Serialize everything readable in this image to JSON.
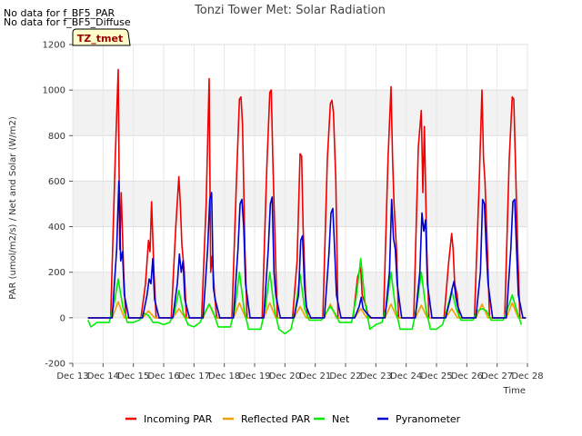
{
  "no_data_messages": [
    "No data for f_BF5_PAR",
    "No data for f_BF5_Diffuse"
  ],
  "tz_label": "TZ_tmet",
  "chart_data": {
    "type": "line",
    "title": "Tonzi Tower Met: Solar Radiation",
    "xlabel": "Time",
    "ylabel": "PAR (umol/m2/s) / Net and Solar (W/m2)",
    "xlim": [
      13,
      28
    ],
    "ylim": [
      -200,
      1200
    ],
    "x_tick_values": [
      13,
      14,
      15,
      16,
      17,
      18,
      19,
      20,
      21,
      22,
      23,
      24,
      25,
      26,
      27,
      28
    ],
    "x_tick_labels": [
      "Dec 13",
      "Dec 14",
      "Dec 15",
      "Dec 16",
      "Dec 17",
      "Dec 18",
      "Dec 19",
      "Dec 20",
      "Dec 21",
      "Dec 22",
      "Dec 23",
      "Dec 24",
      "Dec 25",
      "Dec 26",
      "Dec 27",
      "Dec 28"
    ],
    "y_ticks": [
      -200,
      0,
      200,
      400,
      600,
      800,
      1000,
      1200
    ],
    "grid": true,
    "legend_position": "bottom",
    "series": [
      {
        "name": "Incoming PAR",
        "color": "#ee0000",
        "x": [
          13.5,
          14.0,
          14.25,
          14.4,
          14.5,
          14.55,
          14.6,
          14.68,
          14.75,
          14.8,
          15.0,
          15.25,
          15.4,
          15.5,
          15.55,
          15.6,
          15.68,
          15.75,
          15.8,
          16.0,
          16.25,
          16.4,
          16.5,
          16.55,
          16.6,
          16.68,
          16.75,
          16.8,
          17.0,
          17.25,
          17.4,
          17.5,
          17.55,
          17.6,
          17.68,
          17.75,
          17.8,
          18.0,
          18.25,
          18.4,
          18.5,
          18.55,
          18.6,
          18.68,
          18.75,
          18.8,
          19.0,
          19.25,
          19.4,
          19.5,
          19.55,
          19.6,
          19.68,
          19.75,
          19.8,
          20.0,
          20.25,
          20.4,
          20.5,
          20.55,
          20.6,
          20.68,
          20.75,
          20.8,
          21.0,
          21.25,
          21.4,
          21.5,
          21.55,
          21.6,
          21.68,
          21.75,
          21.8,
          22.0,
          22.25,
          22.4,
          22.5,
          22.55,
          22.6,
          22.68,
          22.75,
          22.8,
          23.0,
          23.25,
          23.4,
          23.5,
          23.55,
          23.6,
          23.68,
          23.75,
          23.8,
          24.0,
          24.25,
          24.4,
          24.5,
          24.55,
          24.6,
          24.68,
          24.75,
          24.8,
          25.0,
          25.25,
          25.4,
          25.5,
          25.55,
          25.6,
          25.68,
          25.75,
          25.8,
          26.0,
          26.25,
          26.4,
          26.5,
          26.55,
          26.6,
          26.68,
          26.75,
          26.8,
          27.0,
          27.25,
          27.4,
          27.5,
          27.55,
          27.6,
          27.68,
          27.75,
          27.8,
          27.95
        ],
        "y": [
          0,
          0,
          0,
          700,
          1090,
          300,
          550,
          200,
          0,
          0,
          0,
          0,
          150,
          340,
          290,
          510,
          200,
          0,
          0,
          0,
          0,
          400,
          620,
          500,
          320,
          200,
          0,
          0,
          0,
          0,
          500,
          1050,
          200,
          270,
          100,
          0,
          0,
          0,
          0,
          600,
          960,
          970,
          850,
          300,
          0,
          0,
          0,
          0,
          650,
          990,
          1000,
          700,
          300,
          0,
          0,
          0,
          0,
          250,
          720,
          710,
          400,
          100,
          0,
          0,
          0,
          0,
          700,
          940,
          955,
          900,
          600,
          0,
          0,
          0,
          0,
          180,
          220,
          100,
          80,
          50,
          0,
          0,
          0,
          0,
          700,
          1015,
          700,
          500,
          300,
          0,
          0,
          0,
          0,
          750,
          910,
          550,
          840,
          300,
          0,
          0,
          0,
          0,
          240,
          370,
          300,
          150,
          100,
          0,
          0,
          0,
          0,
          560,
          1000,
          700,
          600,
          300,
          0,
          0,
          0,
          0,
          700,
          970,
          960,
          700,
          300,
          0,
          0,
          0
        ]
      },
      {
        "name": "Reflected PAR",
        "color": "#f0a000",
        "x": [
          13.5,
          14.0,
          14.3,
          14.5,
          14.7,
          15.0,
          15.3,
          15.5,
          15.7,
          16.0,
          16.3,
          16.5,
          16.7,
          17.0,
          17.3,
          17.5,
          17.7,
          18.0,
          18.3,
          18.5,
          18.7,
          19.0,
          19.3,
          19.5,
          19.7,
          20.0,
          20.3,
          20.5,
          20.7,
          21.0,
          21.3,
          21.5,
          21.7,
          22.0,
          22.3,
          22.5,
          22.7,
          23.0,
          23.3,
          23.5,
          23.7,
          24.0,
          24.3,
          24.5,
          24.7,
          25.0,
          25.3,
          25.5,
          25.7,
          26.0,
          26.3,
          26.5,
          26.7,
          27.0,
          27.3,
          27.5,
          27.7,
          27.95
        ],
        "y": [
          0,
          0,
          0,
          70,
          0,
          0,
          0,
          30,
          0,
          0,
          0,
          40,
          0,
          0,
          0,
          60,
          0,
          0,
          0,
          65,
          0,
          0,
          0,
          65,
          0,
          0,
          0,
          50,
          0,
          0,
          0,
          60,
          0,
          0,
          0,
          40,
          0,
          0,
          0,
          60,
          0,
          0,
          0,
          55,
          0,
          0,
          0,
          40,
          0,
          0,
          0,
          60,
          0,
          0,
          0,
          65,
          0,
          0
        ]
      },
      {
        "name": "Net",
        "color": "#00ee00",
        "x": [
          13.5,
          13.6,
          13.8,
          14.0,
          14.2,
          14.35,
          14.5,
          14.65,
          14.8,
          15.0,
          15.2,
          15.35,
          15.5,
          15.65,
          15.8,
          16.0,
          16.2,
          16.35,
          16.5,
          16.65,
          16.8,
          17.0,
          17.2,
          17.35,
          17.5,
          17.65,
          17.8,
          18.0,
          18.2,
          18.35,
          18.5,
          18.65,
          18.8,
          19.0,
          19.2,
          19.35,
          19.5,
          19.65,
          19.8,
          20.0,
          20.2,
          20.35,
          20.5,
          20.65,
          20.8,
          21.0,
          21.2,
          21.35,
          21.5,
          21.65,
          21.8,
          22.0,
          22.2,
          22.35,
          22.5,
          22.65,
          22.8,
          23.0,
          23.2,
          23.35,
          23.5,
          23.65,
          23.8,
          24.0,
          24.2,
          24.35,
          24.5,
          24.65,
          24.8,
          25.0,
          25.2,
          25.35,
          25.5,
          25.65,
          25.8,
          26.0,
          26.2,
          26.35,
          26.5,
          26.65,
          26.8,
          27.0,
          27.2,
          27.35,
          27.5,
          27.65,
          27.8
        ],
        "y": [
          -10,
          -40,
          -20,
          -20,
          -20,
          50,
          170,
          50,
          -20,
          -20,
          -10,
          20,
          10,
          -20,
          -20,
          -30,
          -20,
          20,
          120,
          20,
          -30,
          -40,
          -20,
          20,
          60,
          20,
          -40,
          -40,
          -40,
          40,
          200,
          40,
          -50,
          -50,
          -50,
          40,
          200,
          40,
          -50,
          -70,
          -50,
          40,
          190,
          40,
          -10,
          -10,
          -10,
          20,
          50,
          20,
          -20,
          -20,
          -20,
          90,
          260,
          60,
          -50,
          -30,
          -20,
          50,
          200,
          40,
          -50,
          -50,
          -50,
          50,
          200,
          40,
          -50,
          -50,
          -30,
          40,
          120,
          40,
          -10,
          -10,
          -10,
          30,
          40,
          30,
          -10,
          -10,
          -10,
          40,
          100,
          30,
          -30
        ]
      },
      {
        "name": "Pyranometer",
        "color": "#0000cc",
        "x": [
          13.5,
          14.0,
          14.3,
          14.45,
          14.52,
          14.58,
          14.64,
          14.7,
          14.85,
          15.0,
          15.3,
          15.45,
          15.52,
          15.58,
          15.64,
          15.7,
          15.85,
          16.0,
          16.3,
          16.45,
          16.52,
          16.58,
          16.64,
          16.7,
          16.85,
          17.0,
          17.3,
          17.45,
          17.52,
          17.58,
          17.64,
          17.7,
          17.85,
          18.0,
          18.3,
          18.45,
          18.52,
          18.58,
          18.64,
          18.7,
          18.85,
          19.0,
          19.3,
          19.45,
          19.52,
          19.58,
          19.64,
          19.7,
          19.85,
          20.0,
          20.3,
          20.45,
          20.52,
          20.58,
          20.64,
          20.7,
          20.85,
          21.0,
          21.3,
          21.45,
          21.52,
          21.58,
          21.64,
          21.7,
          21.85,
          22.0,
          22.3,
          22.45,
          22.52,
          22.58,
          22.64,
          22.7,
          22.85,
          23.0,
          23.3,
          23.45,
          23.52,
          23.58,
          23.64,
          23.7,
          23.85,
          24.0,
          24.3,
          24.45,
          24.52,
          24.58,
          24.64,
          24.7,
          24.85,
          25.0,
          25.3,
          25.45,
          25.52,
          25.58,
          25.64,
          25.7,
          25.85,
          26.0,
          26.3,
          26.45,
          26.52,
          26.58,
          26.64,
          26.7,
          26.85,
          27.0,
          27.3,
          27.45,
          27.52,
          27.58,
          27.64,
          27.7,
          27.85,
          27.95
        ],
        "y": [
          0,
          0,
          0,
          300,
          600,
          250,
          290,
          100,
          0,
          0,
          0,
          100,
          170,
          150,
          260,
          80,
          0,
          0,
          0,
          150,
          280,
          200,
          250,
          80,
          0,
          0,
          0,
          300,
          520,
          550,
          130,
          80,
          0,
          0,
          0,
          300,
          500,
          520,
          400,
          150,
          0,
          0,
          0,
          300,
          500,
          530,
          200,
          100,
          0,
          0,
          0,
          100,
          340,
          360,
          150,
          50,
          0,
          0,
          0,
          280,
          460,
          480,
          300,
          100,
          0,
          0,
          0,
          50,
          90,
          40,
          30,
          20,
          0,
          0,
          0,
          200,
          520,
          350,
          300,
          150,
          0,
          0,
          0,
          200,
          460,
          380,
          430,
          150,
          0,
          0,
          0,
          80,
          130,
          160,
          90,
          50,
          0,
          0,
          0,
          200,
          520,
          500,
          300,
          150,
          0,
          0,
          0,
          300,
          510,
          520,
          300,
          100,
          0,
          0
        ]
      }
    ]
  }
}
